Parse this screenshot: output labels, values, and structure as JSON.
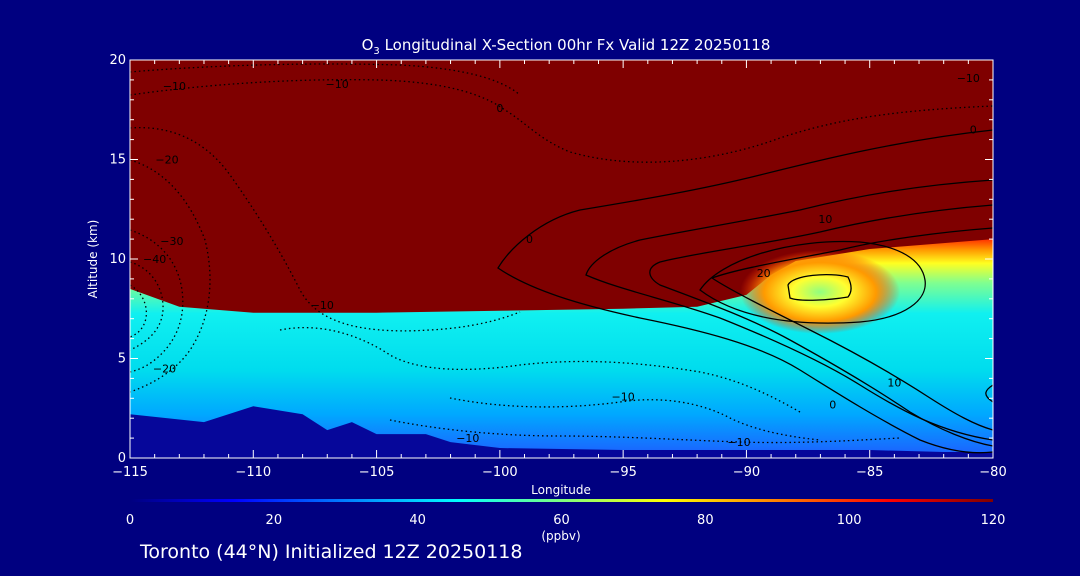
{
  "chart_data": {
    "type": "heatmap",
    "title_prefix": "O",
    "title_subscript": "3",
    "title_rest": " Longitudinal X-Section 00hr  Fx Valid 12Z 20250118",
    "xlabel": "Longitude",
    "ylabel": "Altitude (km)",
    "xlim": [
      -115,
      -80
    ],
    "ylim": [
      0,
      20
    ],
    "x_ticks": [
      -115,
      -110,
      -105,
      -100,
      -95,
      -90,
      -85,
      -80
    ],
    "x_tick_labels": [
      "−115",
      "−110",
      "−105",
      "−100",
      "−95",
      "−90",
      "−85",
      "−80"
    ],
    "y_ticks": [
      0,
      5,
      10,
      15,
      20
    ],
    "y_tick_labels": [
      "0",
      "5",
      "10",
      "15",
      "20"
    ],
    "colorbar": {
      "vmin": 0,
      "vmax": 120,
      "ticks": [
        0,
        20,
        40,
        60,
        80,
        100,
        120
      ],
      "tick_labels": [
        "0",
        "20",
        "40",
        "60",
        "80",
        "100",
        "120"
      ],
      "unit": "(ppbv)",
      "colors": [
        "#00007f",
        "#0000ff",
        "#007fff",
        "#00ffff",
        "#7fff7f",
        "#ffff00",
        "#ff7f00",
        "#ff0000",
        "#7f0000"
      ]
    },
    "tropopause_altitude_km": [
      [
        -115,
        8.5
      ],
      [
        -113,
        7.6
      ],
      [
        -110,
        7.3
      ],
      [
        -105,
        7.3
      ],
      [
        -100,
        7.4
      ],
      [
        -95,
        7.5
      ],
      [
        -92,
        7.6
      ],
      [
        -90,
        8.2
      ],
      [
        -89,
        9.2
      ],
      [
        -88,
        9.9
      ],
      [
        -85,
        10.5
      ],
      [
        -82,
        10.8
      ],
      [
        -80,
        11.0
      ]
    ],
    "surface_altitude_km": [
      [
        -115,
        2.2
      ],
      [
        -112,
        1.8
      ],
      [
        -110,
        2.6
      ],
      [
        -108,
        2.2
      ],
      [
        -107,
        1.4
      ],
      [
        -106,
        1.8
      ],
      [
        -105,
        1.2
      ],
      [
        -104,
        1.2
      ],
      [
        -103,
        1.2
      ],
      [
        -102,
        0.8
      ],
      [
        -100,
        0.5
      ],
      [
        -95,
        0.4
      ],
      [
        -90,
        0.4
      ],
      [
        -85,
        0.4
      ],
      [
        -82,
        0.3
      ],
      [
        -80,
        0.3
      ]
    ],
    "contour_labels": [
      {
        "text": "−10",
        "lon": -113.2,
        "alt": 18.7
      },
      {
        "text": "−10",
        "lon": -106.6,
        "alt": 18.8
      },
      {
        "text": "−10",
        "lon": -81.0,
        "alt": 19.1
      },
      {
        "text": "0",
        "lon": -100.0,
        "alt": 17.6
      },
      {
        "text": "0",
        "lon": -80.8,
        "alt": 16.5
      },
      {
        "text": "−20",
        "lon": -113.5,
        "alt": 15.0
      },
      {
        "text": "10",
        "lon": -86.8,
        "alt": 12.0
      },
      {
        "text": "−30",
        "lon": -113.3,
        "alt": 10.9
      },
      {
        "text": "−40",
        "lon": -114.0,
        "alt": 10.0
      },
      {
        "text": "0",
        "lon": -98.8,
        "alt": 11.0
      },
      {
        "text": "20",
        "lon": -89.3,
        "alt": 9.3
      },
      {
        "text": "−10",
        "lon": -107.2,
        "alt": 7.7
      },
      {
        "text": "−20",
        "lon": -113.6,
        "alt": 4.5
      },
      {
        "text": "10",
        "lon": -84.0,
        "alt": 3.8
      },
      {
        "text": "−10",
        "lon": -95.0,
        "alt": 3.1
      },
      {
        "text": "0",
        "lon": -86.5,
        "alt": 2.7
      },
      {
        "text": "−10",
        "lon": -101.3,
        "alt": 1.0
      },
      {
        "text": "−10",
        "lon": -90.3,
        "alt": 0.8
      }
    ]
  },
  "footer_text": "Toronto (44°N) Initialized 12Z 20250118"
}
